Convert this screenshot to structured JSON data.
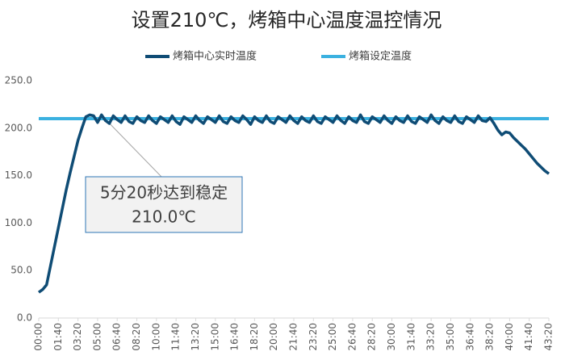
{
  "chart_data": {
    "type": "line",
    "title": "设置210℃，烤箱中心温度温控情况",
    "x": [
      0,
      20,
      40,
      60,
      80,
      100,
      120,
      140,
      160,
      180,
      200,
      220,
      240,
      260,
      280,
      300,
      320,
      340,
      360,
      380,
      400,
      420,
      440,
      460,
      480,
      500,
      520,
      540,
      560,
      580,
      600,
      620,
      640,
      660,
      680,
      700,
      720,
      740,
      760,
      780,
      800,
      820,
      840,
      860,
      880,
      900,
      920,
      940,
      960,
      980,
      1000,
      1020,
      1040,
      1060,
      1080,
      1100,
      1120,
      1140,
      1160,
      1180,
      1200,
      1220,
      1240,
      1260,
      1280,
      1300,
      1320,
      1340,
      1360,
      1380,
      1400,
      1420,
      1440,
      1460,
      1480,
      1500,
      1520,
      1540,
      1560,
      1580,
      1600,
      1620,
      1640,
      1660,
      1680,
      1700,
      1720,
      1740,
      1760,
      1780,
      1800,
      1820,
      1840,
      1860,
      1880,
      1900,
      1920,
      1940,
      1960,
      1980,
      2000,
      2020,
      2040,
      2060,
      2080,
      2100,
      2120,
      2140,
      2160,
      2180,
      2200,
      2220,
      2240,
      2260,
      2280,
      2300,
      2320,
      2340,
      2360,
      2380,
      2400,
      2420,
      2440,
      2460,
      2480,
      2500,
      2520,
      2540,
      2560,
      2580,
      2600
    ],
    "series": [
      {
        "name": "烤箱中心实时温度",
        "color": "#0f4c75",
        "values": [
          27,
          30,
          35,
          55,
          75,
          95,
          115,
          135,
          153,
          170,
          187,
          200,
          212,
          214,
          213,
          206,
          214,
          208,
          205,
          213,
          209,
          206,
          213,
          207,
          205,
          212,
          208,
          206,
          213,
          208,
          205,
          212,
          209,
          206,
          213,
          207,
          204,
          212,
          209,
          206,
          213,
          208,
          205,
          212,
          209,
          206,
          213,
          207,
          205,
          212,
          208,
          206,
          213,
          209,
          204,
          212,
          208,
          206,
          213,
          207,
          205,
          212,
          209,
          206,
          213,
          208,
          205,
          212,
          208,
          206,
          213,
          207,
          205,
          212,
          209,
          206,
          213,
          208,
          205,
          212,
          208,
          206,
          214,
          207,
          205,
          212,
          209,
          206,
          213,
          208,
          205,
          212,
          208,
          206,
          213,
          207,
          205,
          212,
          209,
          206,
          214,
          208,
          205,
          212,
          208,
          206,
          213,
          207,
          205,
          212,
          209,
          206,
          213,
          208,
          207,
          211,
          205,
          198,
          193,
          196,
          195,
          190,
          186,
          182,
          178,
          173,
          168,
          163,
          159,
          155,
          152
        ]
      },
      {
        "name": "烤箱设定温度",
        "color": "#3bb1e0",
        "x": [
          0,
          2600
        ],
        "values": [
          210,
          210
        ]
      }
    ],
    "xlim": [
      0,
      2600
    ],
    "xticks": [
      {
        "value": 0,
        "label": "00:00"
      },
      {
        "value": 100,
        "label": "01:40"
      },
      {
        "value": 200,
        "label": "03:20"
      },
      {
        "value": 300,
        "label": "05:00"
      },
      {
        "value": 400,
        "label": "06:40"
      },
      {
        "value": 500,
        "label": "08:20"
      },
      {
        "value": 600,
        "label": "10:00"
      },
      {
        "value": 700,
        "label": "11:40"
      },
      {
        "value": 800,
        "label": "13:20"
      },
      {
        "value": 900,
        "label": "15:00"
      },
      {
        "value": 1000,
        "label": "16:40"
      },
      {
        "value": 1100,
        "label": "18:20"
      },
      {
        "value": 1200,
        "label": "20:00"
      },
      {
        "value": 1300,
        "label": "21:40"
      },
      {
        "value": 1400,
        "label": "23:20"
      },
      {
        "value": 1500,
        "label": "25:00"
      },
      {
        "value": 1600,
        "label": "26:40"
      },
      {
        "value": 1700,
        "label": "28:20"
      },
      {
        "value": 1800,
        "label": "30:00"
      },
      {
        "value": 1900,
        "label": "31:40"
      },
      {
        "value": 2000,
        "label": "33:20"
      },
      {
        "value": 2100,
        "label": "35:00"
      },
      {
        "value": 2200,
        "label": "36:40"
      },
      {
        "value": 2300,
        "label": "38:20"
      },
      {
        "value": 2400,
        "label": "40:00"
      },
      {
        "value": 2500,
        "label": "41:40"
      },
      {
        "value": 2600,
        "label": "43:20"
      }
    ],
    "ylim": [
      0,
      250
    ],
    "yticks": [
      {
        "value": 0,
        "label": "0.0"
      },
      {
        "value": 50,
        "label": "50.0"
      },
      {
        "value": 100,
        "label": "100.0"
      },
      {
        "value": 150,
        "label": "150.0"
      },
      {
        "value": 200,
        "label": "200.0"
      },
      {
        "value": 250,
        "label": "250.0"
      }
    ],
    "annotation": [
      "5分20秒达到稳定",
      "210.0℃"
    ]
  }
}
